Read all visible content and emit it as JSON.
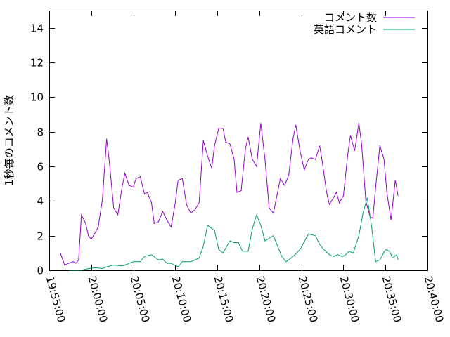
{
  "chart_data": {
    "type": "line",
    "title": "",
    "xlabel": "",
    "ylabel": "1秒毎のコメント数",
    "xlim": [
      "19:55:00",
      "20:40:00"
    ],
    "ylim": [
      0,
      15
    ],
    "x_ticks": [
      "19:55:00",
      "20:00:00",
      "20:05:00",
      "20:10:00",
      "20:15:00",
      "20:20:00",
      "20:25:00",
      "20:30:00",
      "20:35:00",
      "20:40:00"
    ],
    "y_ticks": [
      "0",
      "2",
      "4",
      "6",
      "8",
      "10",
      "12",
      "14"
    ],
    "grid": false,
    "legend": "top-right",
    "series": [
      {
        "name": "コメント数",
        "color": "#9400d3",
        "x": [
          "19:56:20",
          "19:56:50",
          "19:57:20",
          "19:57:50",
          "19:58:10",
          "19:58:30",
          "19:58:50",
          "19:59:20",
          "19:59:40",
          "20:00:00",
          "20:00:30",
          "20:00:50",
          "20:01:20",
          "20:01:50",
          "20:02:10",
          "20:02:40",
          "20:03:10",
          "20:03:40",
          "20:04:00",
          "20:04:30",
          "20:05:00",
          "20:05:20",
          "20:05:50",
          "20:06:20",
          "20:06:40",
          "20:07:10",
          "20:07:30",
          "20:08:00",
          "20:08:30",
          "20:09:00",
          "20:09:30",
          "20:10:00",
          "20:10:20",
          "20:10:50",
          "20:11:20",
          "20:11:50",
          "20:12:20",
          "20:12:50",
          "20:13:20",
          "20:13:50",
          "20:14:20",
          "20:14:40",
          "20:15:10",
          "20:15:40",
          "20:16:00",
          "20:16:30",
          "20:17:00",
          "20:17:20",
          "20:17:50",
          "20:18:20",
          "20:18:40",
          "20:19:10",
          "20:19:40",
          "20:20:10",
          "20:20:40",
          "20:21:10",
          "20:21:40",
          "20:22:10",
          "20:22:30",
          "20:23:00",
          "20:23:30",
          "20:24:00",
          "20:24:20",
          "20:24:50",
          "20:25:20",
          "20:25:50",
          "20:26:10",
          "20:26:40",
          "20:27:10",
          "20:27:30",
          "20:28:00",
          "20:28:20",
          "20:28:50",
          "20:29:10",
          "20:29:30",
          "20:30:00",
          "20:30:30",
          "20:30:50",
          "20:31:20",
          "20:31:50",
          "20:32:10",
          "20:32:40",
          "20:33:10",
          "20:33:30",
          "20:33:50",
          "20:34:20",
          "20:34:50",
          "20:35:10",
          "20:35:40",
          "20:36:10",
          "20:36:30"
        ],
        "values": [
          1.0,
          0.3,
          0.4,
          0.5,
          0.4,
          0.6,
          3.2,
          2.7,
          2.0,
          1.8,
          2.2,
          2.5,
          4.1,
          7.6,
          6.2,
          3.6,
          3.2,
          4.8,
          5.6,
          4.9,
          4.8,
          5.3,
          5.4,
          4.4,
          4.5,
          3.9,
          2.7,
          2.8,
          3.4,
          2.9,
          2.5,
          3.9,
          5.2,
          5.3,
          3.8,
          3.3,
          3.5,
          3.9,
          7.5,
          6.6,
          5.9,
          7.2,
          8.2,
          8.2,
          7.4,
          7.3,
          6.4,
          4.5,
          4.6,
          7.0,
          7.7,
          6.4,
          6.0,
          8.5,
          6.4,
          3.6,
          3.3,
          4.5,
          5.3,
          4.9,
          5.5,
          7.6,
          8.4,
          6.9,
          5.8,
          6.4,
          6.5,
          6.4,
          7.2,
          6.2,
          4.5,
          3.8,
          4.2,
          4.5,
          3.9,
          4.3,
          6.6,
          7.8,
          6.9,
          8.5,
          7.3,
          4.0,
          3.1,
          3.0,
          4.8,
          7.2,
          6.4,
          4.5,
          2.9,
          5.2,
          4.3
        ]
      },
      {
        "name": "英語コメント",
        "color": "#009e73",
        "x": [
          "19:57:20",
          "19:58:50",
          "19:59:40",
          "20:00:30",
          "20:01:20",
          "20:01:50",
          "20:02:40",
          "20:03:40",
          "20:04:00",
          "20:05:00",
          "20:05:50",
          "20:06:20",
          "20:07:10",
          "20:08:00",
          "20:08:30",
          "20:09:00",
          "20:09:30",
          "20:10:20",
          "20:10:50",
          "20:11:50",
          "20:12:50",
          "20:13:20",
          "20:13:50",
          "20:14:40",
          "20:15:10",
          "20:15:40",
          "20:16:30",
          "20:17:00",
          "20:17:30",
          "20:18:00",
          "20:18:40",
          "20:19:10",
          "20:19:40",
          "20:20:10",
          "20:20:40",
          "20:21:40",
          "20:22:40",
          "20:23:10",
          "20:23:30",
          "20:24:00",
          "20:24:50",
          "20:25:50",
          "20:26:40",
          "20:27:10",
          "20:27:40",
          "20:28:20",
          "20:28:50",
          "20:29:20",
          "20:29:50",
          "20:30:10",
          "20:30:40",
          "20:31:10",
          "20:31:50",
          "20:32:20",
          "20:32:50",
          "20:33:20",
          "20:33:50",
          "20:34:20",
          "20:35:00",
          "20:35:30",
          "20:35:50",
          "20:36:20",
          "20:36:30"
        ],
        "values": [
          0.0,
          0.0,
          0.1,
          0.15,
          0.1,
          0.2,
          0.3,
          0.25,
          0.3,
          0.5,
          0.5,
          0.8,
          0.9,
          0.6,
          0.65,
          0.4,
          0.4,
          0.2,
          0.5,
          0.5,
          0.7,
          1.4,
          2.6,
          2.3,
          1.2,
          1.0,
          1.7,
          1.6,
          1.6,
          1.1,
          1.1,
          2.4,
          3.2,
          2.6,
          1.7,
          2.0,
          0.8,
          0.5,
          0.6,
          0.8,
          1.2,
          2.1,
          2.0,
          1.5,
          1.2,
          0.9,
          0.8,
          0.9,
          0.8,
          0.85,
          1.1,
          1.0,
          2.0,
          3.3,
          4.2,
          2.6,
          0.5,
          0.6,
          1.2,
          1.1,
          0.7,
          0.9,
          0.6
        ]
      }
    ]
  }
}
